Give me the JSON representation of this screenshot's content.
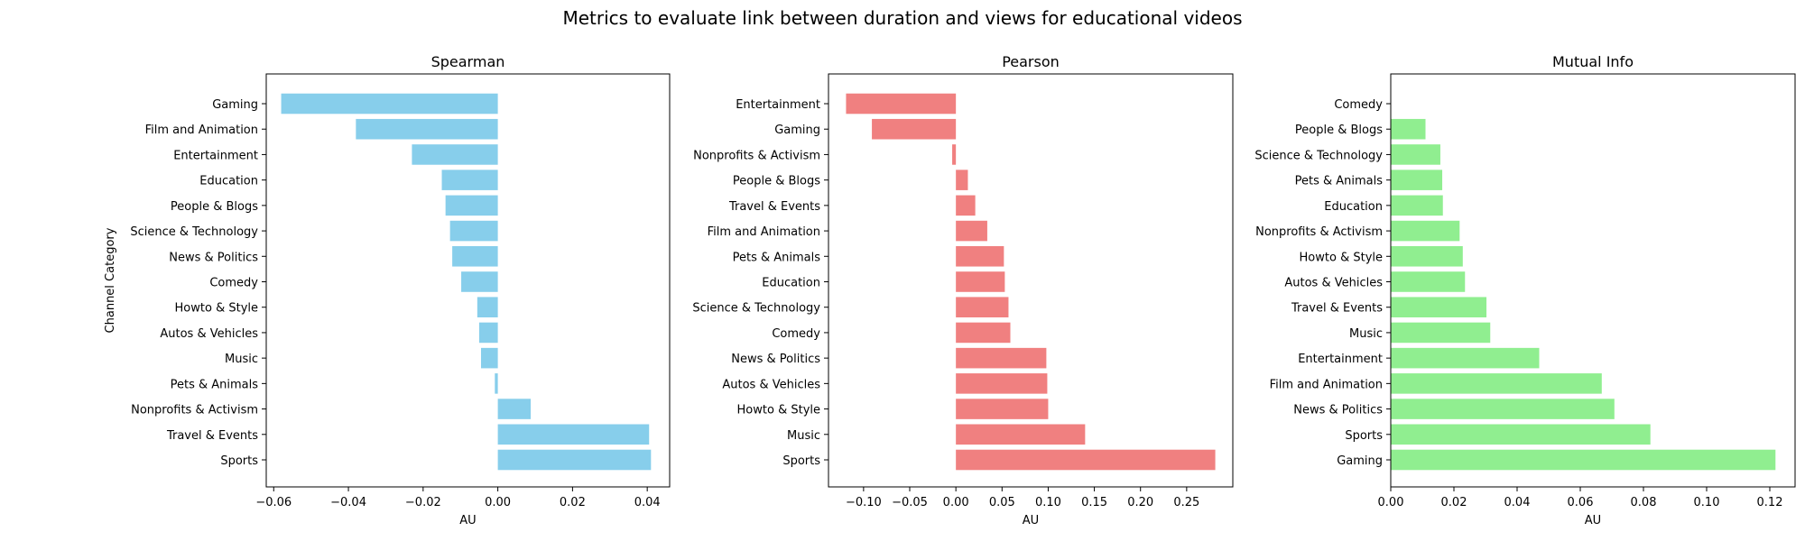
{
  "figure": {
    "title": "Metrics to evaluate link between duration and views for educational videos"
  },
  "chart_data": [
    {
      "type": "bar",
      "orientation": "horizontal",
      "title": "Spearman",
      "xlabel": "AU",
      "ylabel": "Channel Category",
      "color": "#87CEEB",
      "xlim": [
        -0.062,
        0.046
      ],
      "xticks": [
        -0.06,
        -0.04,
        -0.02,
        0.0,
        0.02,
        0.04
      ],
      "xtick_labels": [
        "−0.06",
        "−0.04",
        "−0.02",
        "0.00",
        "0.02",
        "0.04"
      ],
      "categories": [
        "Gaming",
        "Film and Animation",
        "Entertainment",
        "Education",
        "People & Blogs",
        "Science & Technology",
        "News & Politics",
        "Comedy",
        "Howto & Style",
        "Autos & Vehicles",
        "Music",
        "Pets & Animals",
        "Nonprofits & Activism",
        "Travel & Events",
        "Sports"
      ],
      "values": [
        -0.058,
        -0.038,
        -0.023,
        -0.015,
        -0.014,
        -0.0128,
        -0.0122,
        -0.0098,
        -0.0055,
        -0.005,
        -0.0045,
        -0.0008,
        0.0088,
        0.0405,
        0.041
      ]
    },
    {
      "type": "bar",
      "orientation": "horizontal",
      "title": "Pearson",
      "xlabel": "AU",
      "ylabel": "",
      "color": "#F08080",
      "xlim": [
        -0.138,
        0.3
      ],
      "xticks": [
        -0.1,
        -0.05,
        0.0,
        0.05,
        0.1,
        0.15,
        0.2,
        0.25
      ],
      "xtick_labels": [
        "−0.10",
        "−0.05",
        "0.00",
        "0.05",
        "0.10",
        "0.15",
        "0.20",
        "0.25"
      ],
      "categories": [
        "Entertainment",
        "Gaming",
        "Nonprofits & Activism",
        "People & Blogs",
        "Travel & Events",
        "Film and Animation",
        "Pets & Animals",
        "Education",
        "Science & Technology",
        "Comedy",
        "News & Politics",
        "Autos & Vehicles",
        "Howto & Style",
        "Music",
        "Sports"
      ],
      "values": [
        -0.119,
        -0.091,
        -0.004,
        0.013,
        0.021,
        0.034,
        0.052,
        0.053,
        0.057,
        0.059,
        0.098,
        0.099,
        0.1,
        0.14,
        0.281
      ]
    },
    {
      "type": "bar",
      "orientation": "horizontal",
      "title": "Mutual Info",
      "xlabel": "AU",
      "ylabel": "",
      "color": "#90EE90",
      "xlim": [
        0.0,
        0.128
      ],
      "xticks": [
        0.0,
        0.02,
        0.04,
        0.06,
        0.08,
        0.1,
        0.12
      ],
      "xtick_labels": [
        "0.00",
        "0.02",
        "0.04",
        "0.06",
        "0.08",
        "0.10",
        "0.12"
      ],
      "categories": [
        "Comedy",
        "People & Blogs",
        "Science & Technology",
        "Pets & Animals",
        "Education",
        "Nonprofits & Activism",
        "Howto & Style",
        "Autos & Vehicles",
        "Travel & Events",
        "Music",
        "Entertainment",
        "Film and Animation",
        "News & Politics",
        "Sports",
        "Gaming"
      ],
      "values": [
        0.0,
        0.011,
        0.0157,
        0.0163,
        0.0165,
        0.0218,
        0.0228,
        0.0235,
        0.0303,
        0.0315,
        0.047,
        0.0668,
        0.0708,
        0.0822,
        0.1218
      ]
    }
  ]
}
